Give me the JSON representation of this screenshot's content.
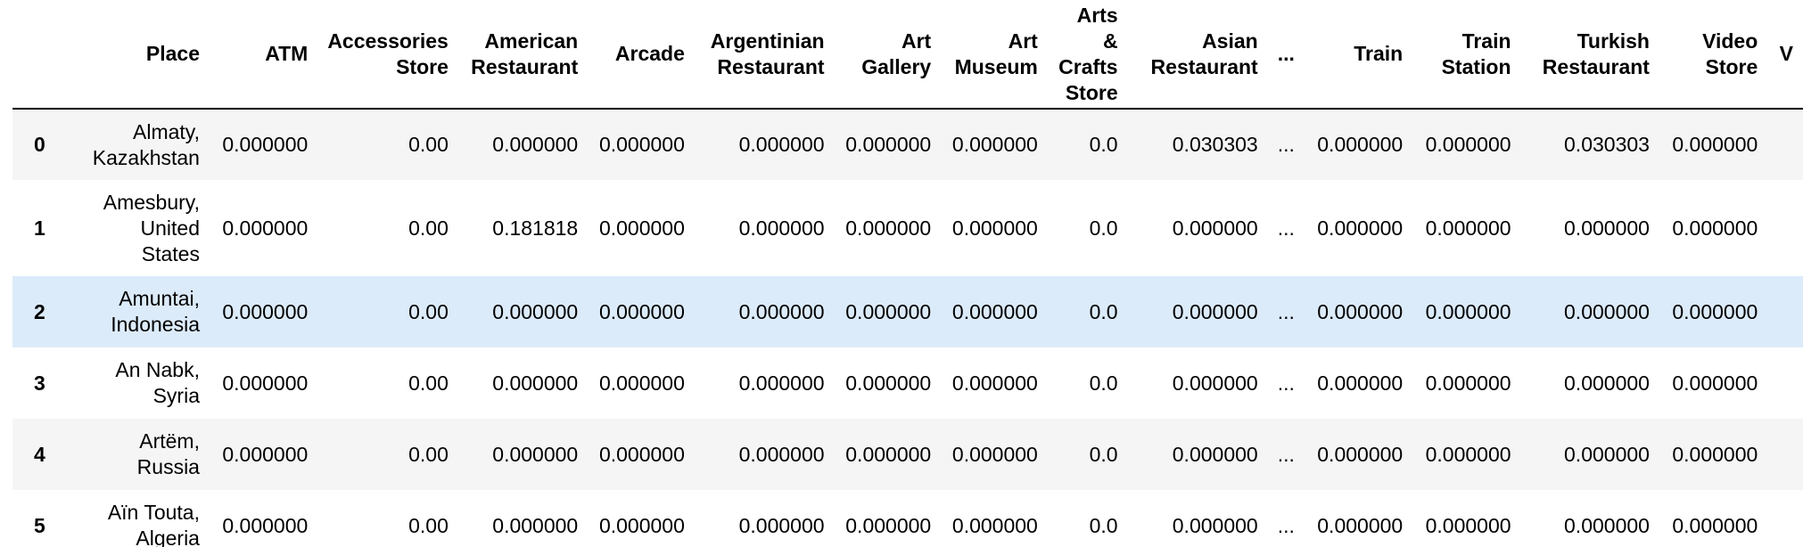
{
  "table": {
    "columns": [
      "",
      "Place",
      "ATM",
      "Accessories Store",
      "American Restaurant",
      "Arcade",
      "Argentinian Restaurant",
      "Art Gallery",
      "Art Museum",
      "Arts & Crafts Store",
      "Asian Restaurant",
      "...",
      "Train",
      "Train Station",
      "Turkish Restaurant",
      "Video Store",
      "V"
    ],
    "rows": [
      {
        "index": "0",
        "place": "Almaty, Kazakhstan",
        "values": [
          "0.000000",
          "0.00",
          "0.000000",
          "0.000000",
          "0.000000",
          "0.000000",
          "0.000000",
          "0.0",
          "0.030303",
          "...",
          "0.000000",
          "0.000000",
          "0.030303",
          "0.000000",
          ""
        ]
      },
      {
        "index": "1",
        "place": "Amesbury, United States",
        "values": [
          "0.000000",
          "0.00",
          "0.181818",
          "0.000000",
          "0.000000",
          "0.000000",
          "0.000000",
          "0.0",
          "0.000000",
          "...",
          "0.000000",
          "0.000000",
          "0.000000",
          "0.000000",
          ""
        ]
      },
      {
        "index": "2",
        "place": "Amuntai, Indonesia",
        "values": [
          "0.000000",
          "0.00",
          "0.000000",
          "0.000000",
          "0.000000",
          "0.000000",
          "0.000000",
          "0.0",
          "0.000000",
          "...",
          "0.000000",
          "0.000000",
          "0.000000",
          "0.000000",
          ""
        ]
      },
      {
        "index": "3",
        "place": "An Nabk, Syria",
        "values": [
          "0.000000",
          "0.00",
          "0.000000",
          "0.000000",
          "0.000000",
          "0.000000",
          "0.000000",
          "0.0",
          "0.000000",
          "...",
          "0.000000",
          "0.000000",
          "0.000000",
          "0.000000",
          ""
        ]
      },
      {
        "index": "4",
        "place": "Artëm, Russia",
        "values": [
          "0.000000",
          "0.00",
          "0.000000",
          "0.000000",
          "0.000000",
          "0.000000",
          "0.000000",
          "0.0",
          "0.000000",
          "...",
          "0.000000",
          "0.000000",
          "0.000000",
          "0.000000",
          ""
        ]
      },
      {
        "index": "5",
        "place": "Aïn Touta, Algeria",
        "values": [
          "0.000000",
          "0.00",
          "0.000000",
          "0.000000",
          "0.000000",
          "0.000000",
          "0.000000",
          "0.0",
          "0.000000",
          "...",
          "0.000000",
          "0.000000",
          "0.000000",
          "0.000000",
          ""
        ]
      }
    ],
    "row_styles": [
      "odd",
      "even",
      "hover",
      "even",
      "odd",
      "even"
    ],
    "colors": {
      "row_stripe": "#f5f5f5",
      "row_hover": "#dcebfa",
      "header_rule": "#000000"
    }
  }
}
